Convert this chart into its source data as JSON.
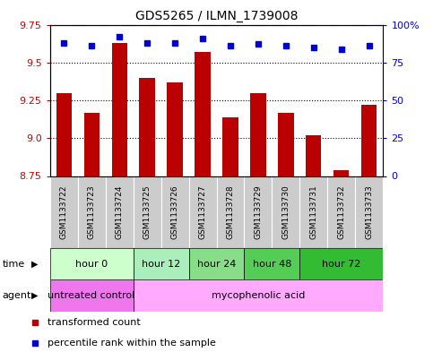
{
  "title": "GDS5265 / ILMN_1739008",
  "samples": [
    "GSM1133722",
    "GSM1133723",
    "GSM1133724",
    "GSM1133725",
    "GSM1133726",
    "GSM1133727",
    "GSM1133728",
    "GSM1133729",
    "GSM1133730",
    "GSM1133731",
    "GSM1133732",
    "GSM1133733"
  ],
  "bar_values": [
    9.3,
    9.17,
    9.63,
    9.4,
    9.37,
    9.57,
    9.14,
    9.3,
    9.17,
    9.02,
    8.79,
    9.22
  ],
  "percentile_values": [
    88,
    86,
    92,
    88,
    88,
    91,
    86,
    87,
    86,
    85,
    84,
    86
  ],
  "ylim_left": [
    8.75,
    9.75
  ],
  "ylim_right": [
    0,
    100
  ],
  "yticks_left": [
    8.75,
    9.0,
    9.25,
    9.5,
    9.75
  ],
  "yticks_right": [
    0,
    25,
    50,
    75,
    100
  ],
  "bar_color": "#bb0000",
  "dot_color": "#0000cc",
  "time_groups": [
    {
      "label": "hour 0",
      "start": 0,
      "end": 3,
      "color": "#ccffcc"
    },
    {
      "label": "hour 12",
      "start": 3,
      "end": 5,
      "color": "#aaeebb"
    },
    {
      "label": "hour 24",
      "start": 5,
      "end": 7,
      "color": "#88dd88"
    },
    {
      "label": "hour 48",
      "start": 7,
      "end": 9,
      "color": "#55cc55"
    },
    {
      "label": "hour 72",
      "start": 9,
      "end": 12,
      "color": "#33bb33"
    }
  ],
  "agent_groups": [
    {
      "label": "untreated control",
      "start": 0,
      "end": 3,
      "color": "#ee77ee"
    },
    {
      "label": "mycophenolic acid",
      "start": 3,
      "end": 12,
      "color": "#ffaaff"
    }
  ],
  "sample_bg_color": "#cccccc",
  "legend_items": [
    {
      "label": "transformed count",
      "color": "#bb0000"
    },
    {
      "label": "percentile rank within the sample",
      "color": "#0000cc"
    }
  ]
}
